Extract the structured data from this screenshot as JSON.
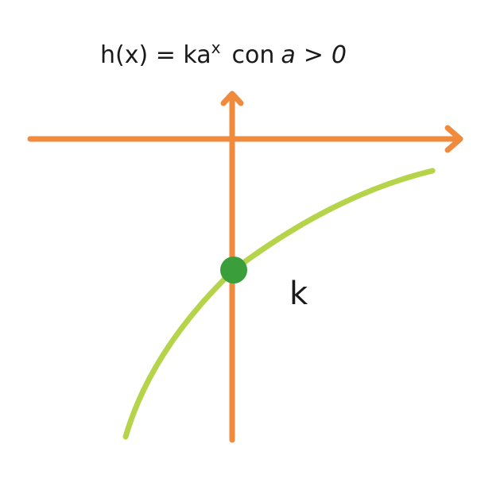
{
  "title": {
    "lhs": "h(x) = ka",
    "exponent": "x",
    "condition_word": "con",
    "base_symbol": "a",
    "relation": ">",
    "zero": "0"
  },
  "point_label": "k",
  "colors": {
    "axes": "#f08a3c",
    "curve": "#b5d44a",
    "point": "#3a9e3a",
    "text": "#1a1a1a"
  }
}
